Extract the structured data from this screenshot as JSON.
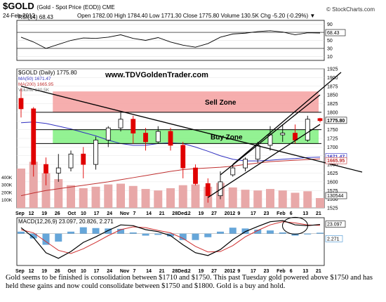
{
  "header": {
    "symbol": "$GOLD",
    "symbol_desc": "(Gold - Spot Price (EOD)) CME",
    "date": "24-Feb-2012",
    "ohlc": "Open 1782.00  High 1784.40  Low 1771.30  Close 1775.80  Volume 130.5K  Chg -5.20 (-0.29%) ▼",
    "brand": "© StockCharts.com"
  },
  "chart_data": [
    {
      "type": "line",
      "panel": "rsi",
      "label": "RSI(14) 68.43",
      "ylim": [
        0,
        100
      ],
      "yticks": [
        10,
        30,
        50,
        70,
        90
      ],
      "guides": [
        30,
        70
      ],
      "last_value_label": "68.43",
      "x": [
        "Sep 12",
        "Sep 19",
        "Sep 26",
        "Oct 3",
        "Oct 10",
        "Oct 17",
        "Oct 24",
        "Oct 31",
        "Nov 7",
        "Nov 14",
        "Nov 21",
        "Nov 28",
        "Dec 5",
        "Dec 12",
        "Dec 19",
        "Dec 27",
        "Jan 3",
        "Jan 9",
        "Jan 17",
        "Jan 23",
        "Jan 30",
        "Feb 6",
        "Feb 13",
        "Feb 21",
        "Feb 24"
      ],
      "values": [
        58,
        46,
        30,
        40,
        50,
        56,
        55,
        58,
        64,
        55,
        50,
        57,
        46,
        38,
        33,
        42,
        58,
        66,
        68,
        72,
        74,
        71,
        64,
        69,
        68.43
      ]
    },
    {
      "type": "candlestick",
      "panel": "price",
      "title": "www.TDVGoldenTrader.com",
      "legend": [
        "$GOLD (Daily) 1775.80",
        "MA(50) 1671.47",
        "MA(200) 1665.95",
        "Volume 130.5K"
      ],
      "ylim": [
        1525,
        1925
      ],
      "yticks": [
        1525,
        1550,
        1575,
        1600,
        1625,
        1650,
        1675,
        1700,
        1725,
        1750,
        1775,
        1800,
        1825,
        1850,
        1875,
        1900,
        1925
      ],
      "vol_ticks": [
        "100K",
        "200K",
        "300K",
        "400K"
      ],
      "x_labels": [
        "Sep",
        "12",
        "19",
        "26",
        "Oct",
        "10",
        "17",
        "24",
        "Nov",
        "7",
        "14",
        "21",
        "28Dec",
        "12",
        "19",
        "27",
        "2012",
        "9",
        "17",
        "23",
        "Feb",
        "6",
        "13",
        "21"
      ],
      "x": [
        "Sep 12",
        "Sep 19",
        "Sep 26",
        "Oct 3",
        "Oct 10",
        "Oct 17",
        "Oct 24",
        "Oct 31",
        "Nov 7",
        "Nov 14",
        "Nov 21",
        "Nov 28",
        "Dec 5",
        "Dec 12",
        "Dec 19",
        "Dec 27",
        "Jan 3",
        "Jan 9",
        "Jan 17",
        "Jan 23",
        "Jan 30",
        "Feb 6",
        "Feb 13",
        "Feb 21",
        "Feb 24"
      ],
      "open": [
        1840,
        1810,
        1650,
        1625,
        1640,
        1680,
        1650,
        1720,
        1755,
        1780,
        1740,
        1715,
        1745,
        1705,
        1640,
        1595,
        1560,
        1620,
        1640,
        1665,
        1705,
        1735,
        1740,
        1720,
        1782
      ],
      "high": [
        1870,
        1815,
        1670,
        1680,
        1690,
        1700,
        1730,
        1760,
        1800,
        1790,
        1755,
        1760,
        1755,
        1715,
        1650,
        1610,
        1630,
        1650,
        1670,
        1715,
        1760,
        1765,
        1765,
        1790,
        1784
      ],
      "low": [
        1785,
        1615,
        1590,
        1600,
        1630,
        1610,
        1635,
        1700,
        1745,
        1710,
        1690,
        1710,
        1690,
        1610,
        1590,
        1540,
        1550,
        1615,
        1630,
        1655,
        1690,
        1715,
        1710,
        1715,
        1771
      ],
      "close": [
        1810,
        1650,
        1625,
        1640,
        1680,
        1650,
        1720,
        1755,
        1780,
        1740,
        1715,
        1745,
        1705,
        1640,
        1595,
        1560,
        1600,
        1640,
        1665,
        1705,
        1735,
        1740,
        1720,
        1780,
        1776
      ],
      "ma50": [
        1770,
        1772,
        1768,
        1760,
        1752,
        1742,
        1732,
        1720,
        1710,
        1705,
        1705,
        1710,
        1712,
        1710,
        1700,
        1688,
        1675,
        1665,
        1660,
        1660,
        1662,
        1665,
        1667,
        1670,
        1671
      ],
      "ma200": [
        1560,
        1568,
        1575,
        1580,
        1585,
        1590,
        1595,
        1600,
        1606,
        1612,
        1618,
        1624,
        1630,
        1635,
        1638,
        1640,
        1642,
        1645,
        1650,
        1654,
        1658,
        1660,
        1662,
        1664,
        1666
      ],
      "volume_k": [
        520,
        610,
        460,
        380,
        300,
        260,
        280,
        310,
        320,
        290,
        250,
        230,
        260,
        300,
        310,
        280,
        330,
        270,
        240,
        230,
        250,
        230,
        200,
        220,
        130
      ],
      "sell_zone": {
        "label": "Sell Zone",
        "from": 1800,
        "to": 1860
      },
      "buy_zone": {
        "label": "Buy Zone",
        "from": 1710,
        "to": 1750
      },
      "horizontal_lines": [
        1800,
        1750,
        1710
      ],
      "downtrend": {
        "from": [
          "Sep 12",
          1875
        ],
        "to": [
          "Feb 24",
          1628
        ]
      },
      "channel_lower": {
        "from": [
          "Dec 27",
          1555
        ],
        "to": [
          "Feb 24",
          1765
        ]
      },
      "channel_upper": {
        "from": [
          "Jan 3",
          1620
        ],
        "to": [
          "Feb 24",
          1850
        ]
      },
      "channel_long": {
        "from": [
          "Jan 9",
          1650
        ],
        "to": [
          "Feb 24",
          1915
        ]
      },
      "price_labels": [
        "1775.80",
        "1671.47",
        "1665.95"
      ],
      "volume_label": "130544"
    },
    {
      "type": "line",
      "panel": "macd",
      "label": "MACD(12,26,9) 23.097, 20.826, 2.271",
      "ylim": [
        -80,
        40
      ],
      "x": [
        "Sep 12",
        "Sep 19",
        "Sep 26",
        "Oct 3",
        "Oct 10",
        "Oct 17",
        "Oct 24",
        "Oct 31",
        "Nov 7",
        "Nov 14",
        "Nov 21",
        "Nov 28",
        "Dec 5",
        "Dec 12",
        "Dec 19",
        "Dec 27",
        "Jan 3",
        "Jan 9",
        "Jan 17",
        "Jan 23",
        "Jan 30",
        "Feb 6",
        "Feb 13",
        "Feb 21",
        "Feb 24"
      ],
      "series": [
        {
          "name": "MACD",
          "values": [
            15,
            -10,
            -48,
            -62,
            -45,
            -22,
            -8,
            8,
            22,
            20,
            10,
            5,
            -5,
            -28,
            -48,
            -55,
            -40,
            -15,
            5,
            18,
            30,
            33,
            22,
            20,
            23.1
          ]
        },
        {
          "name": "Signal",
          "values": [
            10,
            2,
            -20,
            -42,
            -50,
            -38,
            -22,
            -5,
            10,
            17,
            15,
            8,
            2,
            -12,
            -32,
            -46,
            -45,
            -30,
            -8,
            8,
            22,
            30,
            27,
            22,
            20.8
          ]
        },
        {
          "name": "Histogram",
          "values": [
            5,
            -12,
            -28,
            -20,
            5,
            16,
            14,
            13,
            12,
            3,
            -5,
            -3,
            -7,
            -16,
            -16,
            -9,
            5,
            15,
            13,
            10,
            8,
            3,
            -5,
            -2,
            2.3
          ]
        }
      ],
      "last_value_labels": [
        "23.097",
        "2.271"
      ],
      "x_labels": [
        "Sep",
        "12",
        "19",
        "26",
        "Oct",
        "10",
        "17",
        "24",
        "Nov",
        "7",
        "14",
        "21",
        "28Dec",
        "12",
        "19",
        "27",
        "2012",
        "9",
        "17",
        "23",
        "Feb",
        "6",
        "13",
        "21"
      ]
    }
  ],
  "caption": "Gold seems to be finished is consolidation between $1710 and $1750.  This past Tuesday gold powered above $1750 and has held these gains and now could consolidate between $1750 and $1800.  Gold is a buy and hold.",
  "colors": {
    "sell_zone": "#f5a0a0",
    "buy_zone": "#80f080",
    "up": "#000000",
    "down": "#e00000",
    "ma50": "#3030c0",
    "ma200": "#c03030",
    "volume": "#e8a8a8",
    "macd_hist": "#4090d0"
  }
}
